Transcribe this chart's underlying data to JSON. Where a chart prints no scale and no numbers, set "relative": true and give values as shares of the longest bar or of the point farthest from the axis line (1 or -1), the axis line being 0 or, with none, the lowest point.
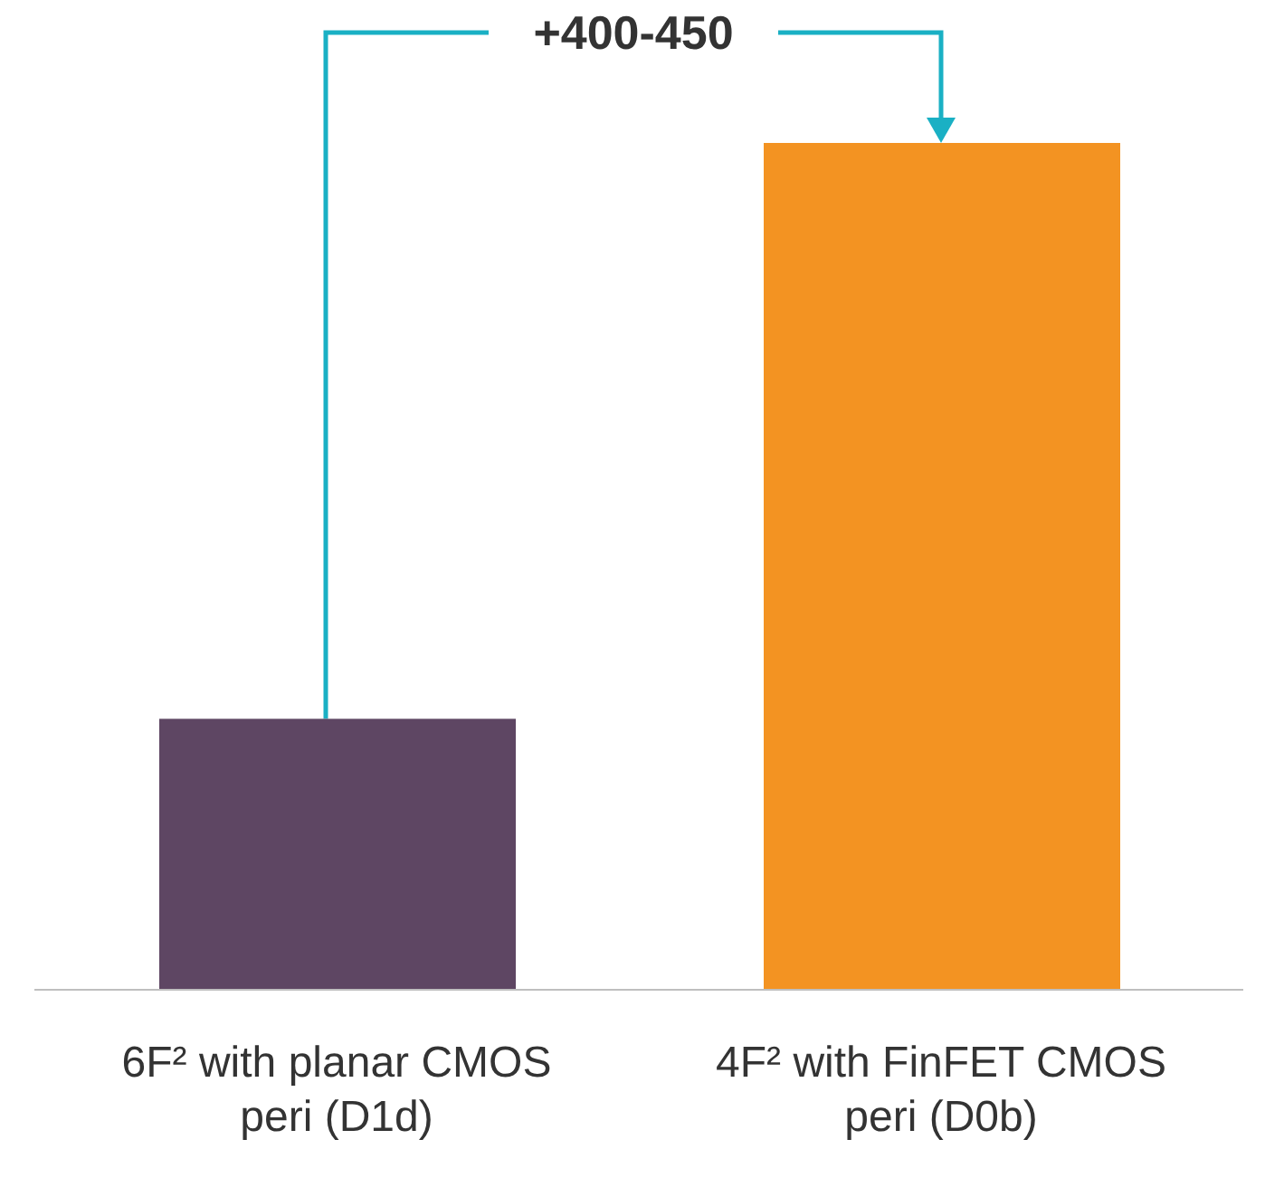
{
  "chart_data": {
    "type": "bar",
    "relative": true,
    "categories": [
      "6F² with planar CMOS peri (D1d)",
      "4F² with FinFET CMOS peri (D0b)"
    ],
    "values": [
      0.32,
      1
    ],
    "colors": [
      "#5e4663",
      "#f39322"
    ],
    "annotations": [
      "+400-450"
    ],
    "grid": false,
    "legend": false
  }
}
